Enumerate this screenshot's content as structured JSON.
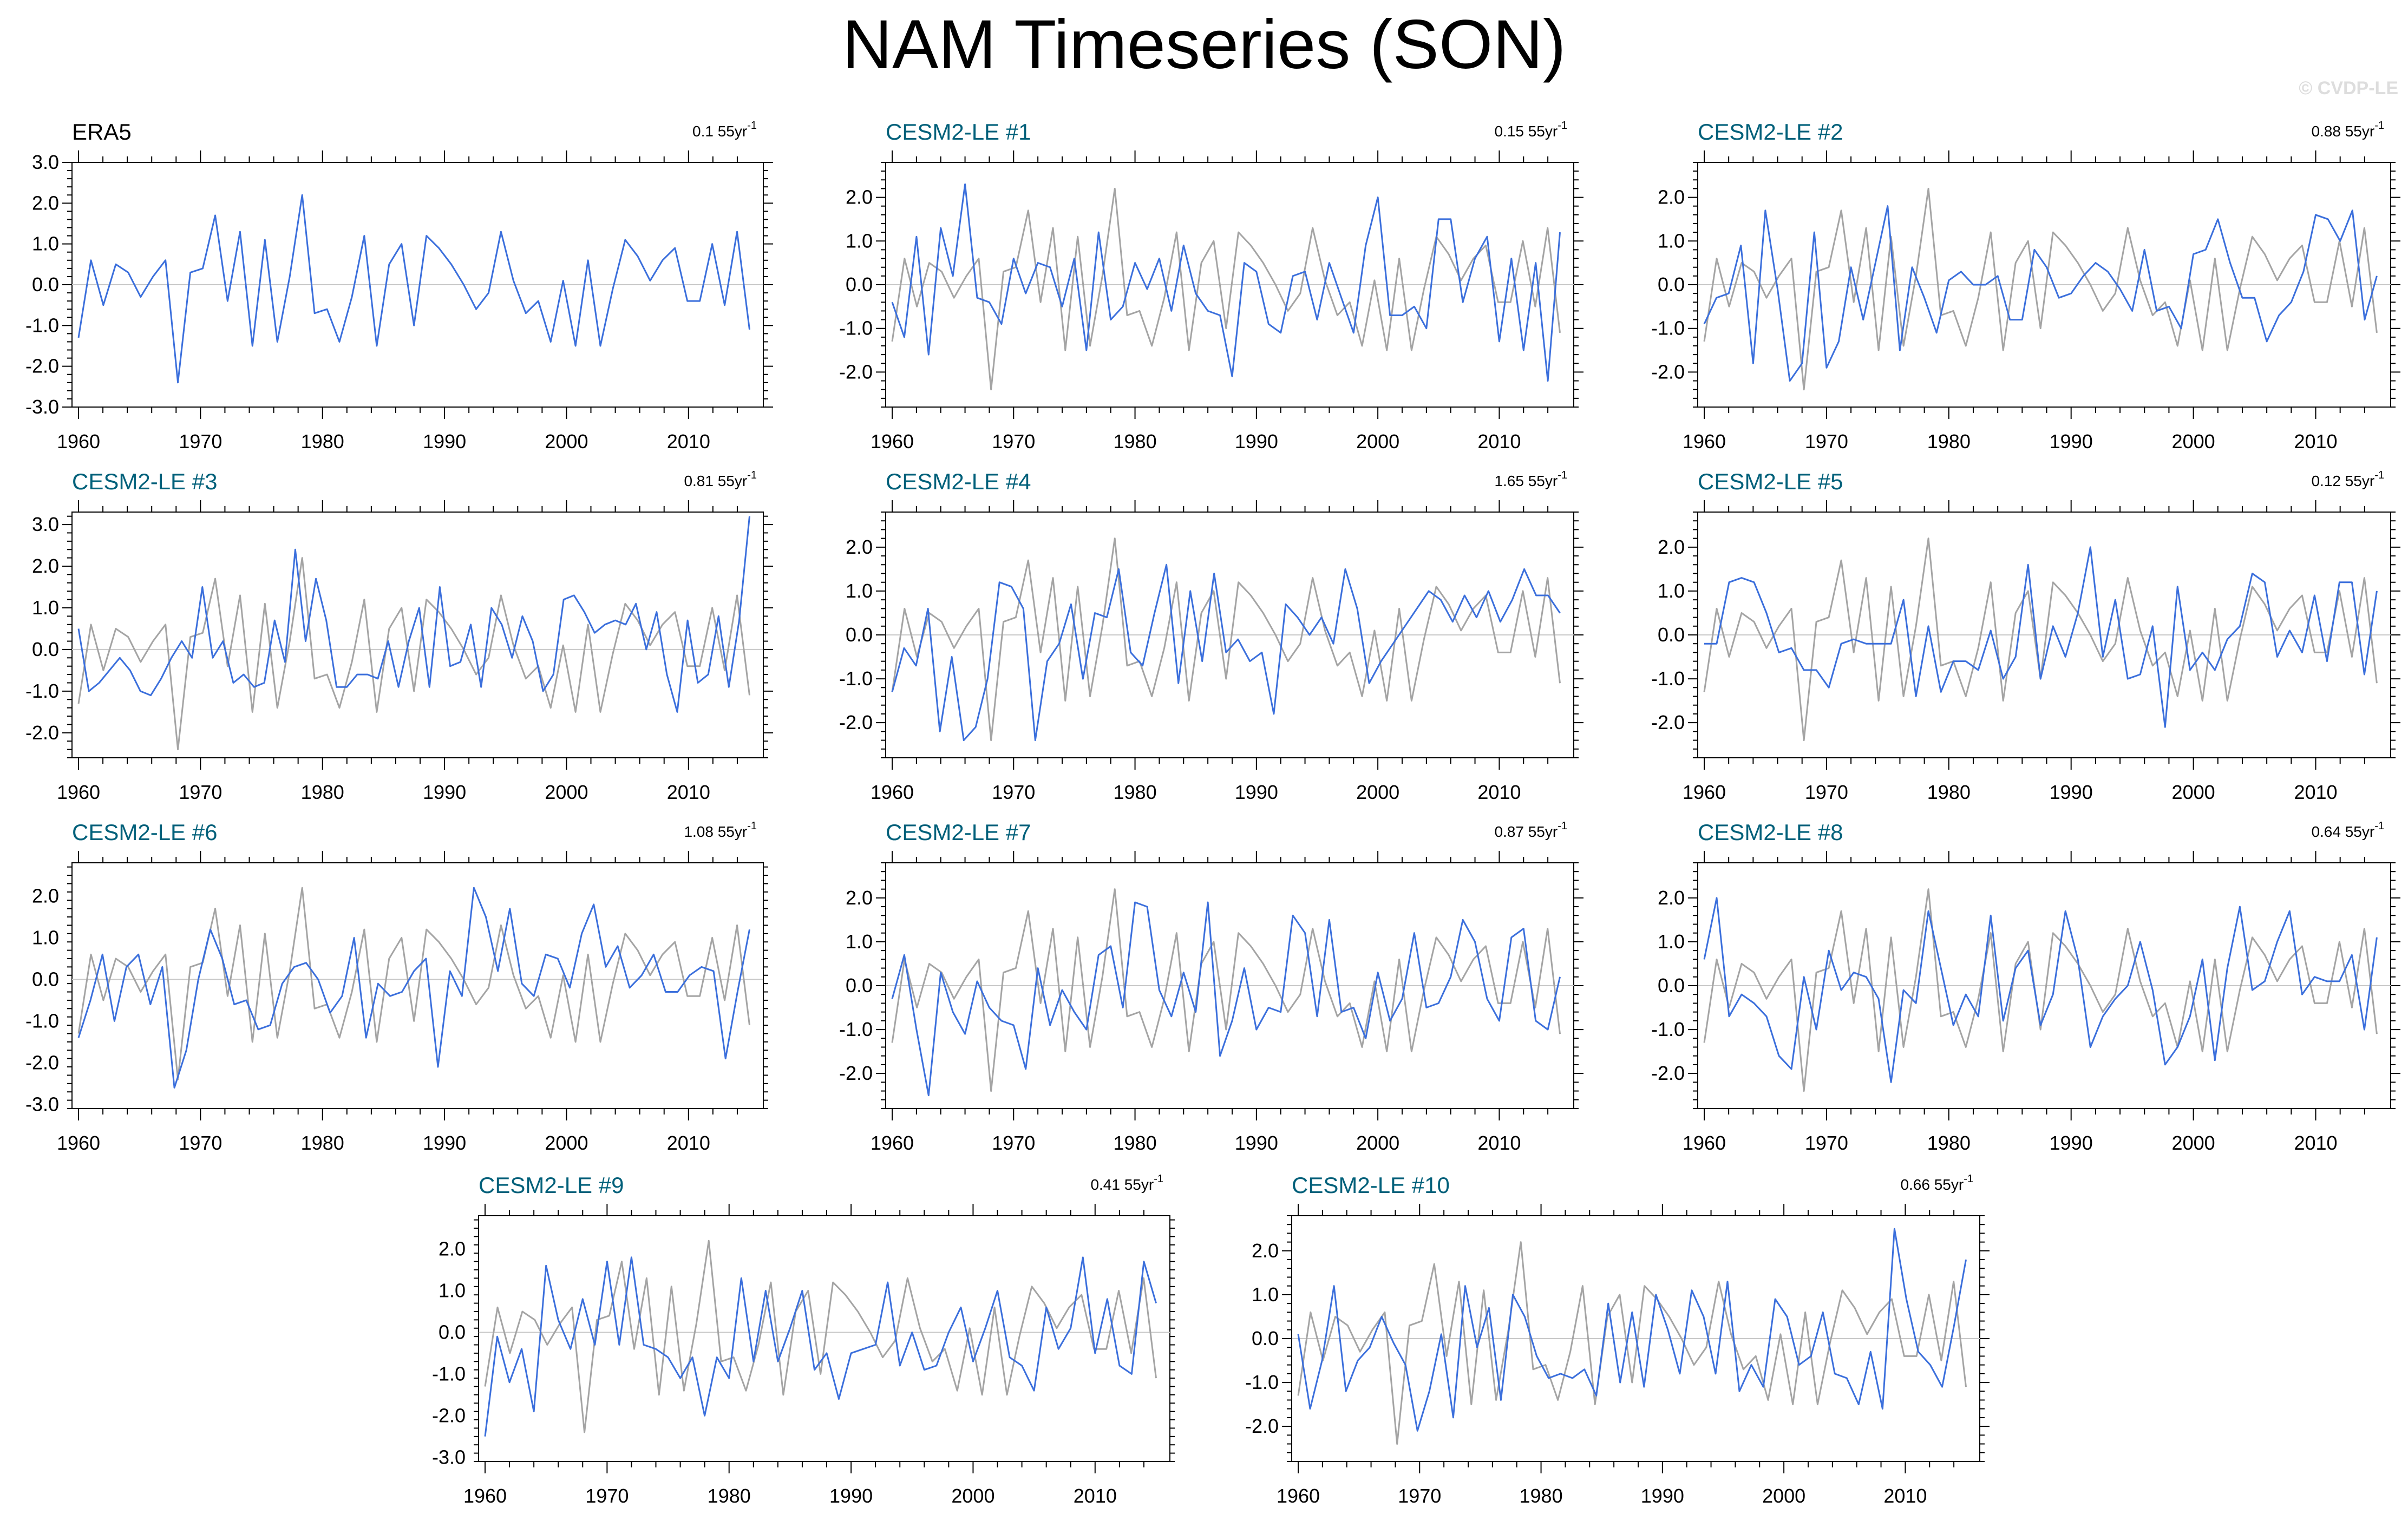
{
  "title": "NAM Timeseries (SON)",
  "copyright": "© CVDP-LE",
  "colors": {
    "ensemble": "#3b6fdc",
    "observed": "#a4a4a4",
    "obs_title": "#000000",
    "member_title": "#00607a",
    "zero_line": "#c8c8c8"
  },
  "chart_data": [
    {
      "type": "line",
      "title": "ERA5",
      "trend_value": "0.1 55yr",
      "trend_exp": "-1",
      "x_ticks": [
        "1960",
        "1970",
        "1980",
        "1990",
        "2000",
        "2010"
      ],
      "y_ticks": [
        "3.0",
        "2.0",
        "1.0",
        "0.0",
        "-1.0",
        "-2.0",
        "-3.0"
      ],
      "ylim": [
        -3.0,
        3.0
      ],
      "series": []
    },
    {
      "type": "line",
      "title": "CESM2-LE #1",
      "trend_value": "0.15 55yr",
      "trend_exp": "-1",
      "x_ticks": [
        "1960",
        "1970",
        "1980",
        "1990",
        "2000",
        "2010"
      ],
      "y_ticks": [
        "2.0",
        "1.0",
        "0.0",
        "-1.0",
        "-2.0"
      ],
      "ylim": [
        -2.8,
        2.8
      ],
      "series": [
        {
          "values": [
            -0.4,
            -1.2,
            1.1,
            -1.6,
            1.3,
            0.2,
            2.3,
            -0.3,
            -0.4,
            -0.9,
            0.6,
            -0.2,
            0.5,
            0.4,
            -0.5,
            0.6,
            -1.5,
            1.2,
            -0.8,
            -0.5,
            0.5,
            -0.1,
            0.6,
            -0.6,
            0.9,
            -0.2,
            -0.6,
            -0.7,
            -2.1,
            0.5,
            0.3,
            -0.9,
            -1.1,
            0.2,
            0.3,
            -0.8,
            0.5,
            -0.3,
            -1.1,
            0.9,
            2.0,
            -0.7,
            -0.7,
            -0.5,
            -1.0,
            1.5,
            1.5,
            -0.4,
            0.6,
            1.1,
            -1.3,
            0.6,
            -1.5,
            0.5,
            -2.2,
            1.2
          ]
        }
      ]
    },
    {
      "type": "line",
      "title": "CESM2-LE #2",
      "trend_value": "0.88 55yr",
      "trend_exp": "-1",
      "x_ticks": [
        "1960",
        "1970",
        "1980",
        "1990",
        "2000",
        "2010"
      ],
      "y_ticks": [
        "2.0",
        "1.0",
        "0.0",
        "-1.0",
        "-2.0"
      ],
      "ylim": [
        -2.8,
        2.8
      ],
      "series": [
        {
          "values": [
            -0.9,
            -0.3,
            -0.2,
            0.9,
            -1.8,
            1.7,
            -0.1,
            -2.2,
            -1.8,
            1.2,
            -1.9,
            -1.3,
            0.4,
            -0.8,
            0.5,
            1.8,
            -1.5,
            0.4,
            -0.3,
            -1.1,
            0.1,
            0.3,
            0.0,
            0.0,
            0.2,
            -0.8,
            -0.8,
            0.8,
            0.4,
            -0.3,
            -0.2,
            0.2,
            0.5,
            0.3,
            -0.1,
            -0.6,
            0.8,
            -0.6,
            -0.5,
            -1.0,
            0.7,
            0.8,
            1.5,
            0.5,
            -0.3,
            -0.3,
            -1.3,
            -0.7,
            -0.4,
            0.3,
            1.6,
            1.5,
            1.0,
            1.7,
            -0.8,
            0.2
          ]
        }
      ]
    },
    {
      "type": "line",
      "title": "CESM2-LE #3",
      "trend_value": "0.81 55yr",
      "trend_exp": "-1",
      "x_ticks": [
        "1960",
        "1970",
        "1980",
        "1990",
        "2000",
        "2010"
      ],
      "y_ticks": [
        "3.0",
        "2.0",
        "1.0",
        "0.0",
        "-1.0",
        "-2.0"
      ],
      "ylim": [
        -2.6,
        3.3
      ],
      "series": [
        {
          "values": [
            0.5,
            -1.0,
            -0.8,
            -0.5,
            -0.2,
            -0.5,
            -1.0,
            -1.1,
            -0.7,
            -0.2,
            0.2,
            -0.2,
            1.5,
            -0.2,
            0.2,
            -0.8,
            -0.6,
            -0.9,
            -0.8,
            0.7,
            -0.3,
            2.4,
            0.2,
            1.7,
            0.7,
            -0.9,
            -0.9,
            -0.6,
            -0.6,
            -0.7,
            0.2,
            -0.9,
            0.2,
            1.0,
            -0.9,
            1.5,
            -0.4,
            -0.3,
            0.6,
            -0.9,
            1.0,
            0.6,
            -0.2,
            0.8,
            0.2,
            -1.0,
            -0.6,
            1.2,
            1.3,
            0.9,
            0.4,
            0.6,
            0.7,
            0.6,
            1.1,
            0.0,
            0.9,
            -0.6,
            -1.5,
            0.7,
            -0.8,
            -0.6,
            0.8,
            -0.9,
            0.7,
            3.2
          ]
        }
      ]
    },
    {
      "type": "line",
      "title": "CESM2-LE #4",
      "trend_value": "1.65 55yr",
      "trend_exp": "-1",
      "x_ticks": [
        "1960",
        "1970",
        "1980",
        "1990",
        "2000",
        "2010"
      ],
      "y_ticks": [
        "2.0",
        "1.0",
        "0.0",
        "-1.0",
        "-2.0"
      ],
      "ylim": [
        -2.8,
        2.8
      ],
      "series": [
        {
          "values": [
            -1.3,
            -0.3,
            -0.7,
            0.6,
            -2.2,
            -0.5,
            -2.4,
            -2.1,
            -1.0,
            1.2,
            1.1,
            0.6,
            -2.4,
            -0.6,
            -0.2,
            0.7,
            -1.0,
            0.5,
            0.4,
            1.5,
            -0.4,
            -0.7,
            0.5,
            1.6,
            -1.1,
            1.0,
            -0.6,
            1.4,
            -0.4,
            -0.1,
            -0.6,
            -0.4,
            -1.8,
            0.7,
            0.4,
            0.0,
            0.4,
            -0.2,
            1.5,
            0.6,
            -1.1,
            -0.6,
            -0.2,
            0.2,
            0.6,
            1.0,
            0.8,
            0.3,
            0.9,
            0.4,
            1.0,
            0.3,
            0.8,
            1.5,
            0.9,
            0.9,
            0.5
          ]
        }
      ]
    },
    {
      "type": "line",
      "title": "CESM2-LE #5",
      "trend_value": "0.12 55yr",
      "trend_exp": "-1",
      "x_ticks": [
        "1960",
        "1970",
        "1980",
        "1990",
        "2000",
        "2010"
      ],
      "y_ticks": [
        "2.0",
        "1.0",
        "0.0",
        "-1.0",
        "-2.0"
      ],
      "ylim": [
        -2.8,
        2.8
      ],
      "series": [
        {
          "values": [
            -0.2,
            -0.2,
            1.2,
            1.3,
            1.2,
            0.5,
            -0.4,
            -0.3,
            -0.8,
            -0.8,
            -1.2,
            -0.2,
            -0.1,
            -0.2,
            -0.2,
            -0.2,
            0.8,
            -1.4,
            0.2,
            -1.3,
            -0.6,
            -0.6,
            -0.8,
            0.1,
            -1.0,
            -0.5,
            1.6,
            -1.0,
            0.2,
            -0.5,
            0.5,
            2.0,
            -0.5,
            0.8,
            -1.0,
            -0.9,
            0.2,
            -2.1,
            1.1,
            -0.8,
            -0.4,
            -0.8,
            -0.1,
            0.2,
            1.4,
            1.2,
            -0.5,
            0.1,
            -0.4,
            0.9,
            -0.6,
            1.2,
            1.2,
            -0.9,
            1.0
          ]
        }
      ]
    },
    {
      "type": "line",
      "title": "CESM2-LE #6",
      "trend_value": "1.08 55yr",
      "trend_exp": "-1",
      "x_ticks": [
        "1960",
        "1970",
        "1980",
        "1990",
        "2000",
        "2010"
      ],
      "y_ticks": [
        "2.0",
        "1.0",
        "0.0",
        "-1.0",
        "-2.0",
        "-3.0"
      ],
      "ylim": [
        -3.1,
        2.8
      ],
      "series": [
        {
          "values": [
            -1.4,
            -0.5,
            0.6,
            -1.0,
            0.3,
            0.6,
            -0.6,
            0.3,
            -2.6,
            -1.7,
            0.0,
            1.2,
            0.5,
            -0.6,
            -0.5,
            -1.2,
            -1.1,
            -0.1,
            0.3,
            0.4,
            0.0,
            -0.8,
            -0.4,
            1.0,
            -1.4,
            -0.1,
            -0.4,
            -0.3,
            0.2,
            0.5,
            -2.1,
            0.2,
            -0.4,
            2.2,
            1.5,
            0.2,
            1.7,
            -0.1,
            -0.4,
            0.6,
            0.5,
            -0.2,
            1.1,
            1.8,
            0.3,
            0.8,
            -0.2,
            0.1,
            0.6,
            -0.3,
            -0.3,
            0.1,
            0.3,
            0.2,
            -1.9,
            -0.3,
            1.2
          ]
        }
      ]
    },
    {
      "type": "line",
      "title": "CESM2-LE #7",
      "trend_value": "0.87 55yr",
      "trend_exp": "-1",
      "x_ticks": [
        "1960",
        "1970",
        "1980",
        "1990",
        "2000",
        "2010"
      ],
      "y_ticks": [
        "2.0",
        "1.0",
        "0.0",
        "-1.0",
        "-2.0"
      ],
      "ylim": [
        -2.8,
        2.8
      ],
      "series": [
        {
          "values": [
            -0.3,
            0.7,
            -1.0,
            -2.5,
            0.3,
            -0.6,
            -1.1,
            0.1,
            -0.5,
            -0.8,
            -0.9,
            -1.9,
            0.4,
            -0.9,
            -0.1,
            -0.6,
            -1.0,
            0.7,
            0.9,
            -0.5,
            1.9,
            1.8,
            -0.1,
            -0.7,
            0.3,
            -0.6,
            1.9,
            -1.6,
            -0.8,
            0.4,
            -1.0,
            -0.5,
            -0.6,
            1.6,
            1.2,
            -0.7,
            1.5,
            -0.6,
            -0.5,
            -1.2,
            0.3,
            -0.8,
            -0.3,
            1.2,
            -0.5,
            -0.4,
            0.2,
            1.5,
            1.0,
            -0.3,
            -0.8,
            1.1,
            1.3,
            -0.8,
            -1.0,
            0.2
          ]
        }
      ]
    },
    {
      "type": "line",
      "title": "CESM2-LE #8",
      "trend_value": "0.64 55yr",
      "trend_exp": "-1",
      "x_ticks": [
        "1960",
        "1970",
        "1980",
        "1990",
        "2000",
        "2010"
      ],
      "y_ticks": [
        "2.0",
        "1.0",
        "0.0",
        "-1.0",
        "-2.0"
      ],
      "ylim": [
        -2.8,
        2.8
      ],
      "series": [
        {
          "values": [
            0.6,
            2.0,
            -0.7,
            -0.2,
            -0.4,
            -0.7,
            -1.6,
            -1.9,
            0.2,
            -1.0,
            0.8,
            -0.1,
            0.3,
            0.2,
            -0.3,
            -2.2,
            -0.1,
            -0.4,
            1.7,
            0.4,
            -0.9,
            -0.2,
            -0.7,
            1.6,
            -0.8,
            0.4,
            0.8,
            -0.9,
            -0.2,
            1.7,
            0.6,
            -1.4,
            -0.7,
            -0.3,
            0.0,
            1.0,
            -0.1,
            -1.8,
            -1.4,
            -0.7,
            0.6,
            -1.7,
            0.4,
            1.8,
            -0.1,
            0.1,
            1.0,
            1.7,
            -0.2,
            0.2,
            0.1,
            0.1,
            0.7,
            -1.0,
            1.1
          ]
        }
      ]
    },
    {
      "type": "line",
      "title": "CESM2-LE #9",
      "trend_value": "0.41 55yr",
      "trend_exp": "-1",
      "x_ticks": [
        "1960",
        "1970",
        "1980",
        "1990",
        "2000",
        "2010"
      ],
      "y_ticks": [
        "2.0",
        "1.0",
        "0.0",
        "-1.0",
        "-2.0",
        "-3.0"
      ],
      "ylim": [
        -3.1,
        2.8
      ],
      "series": [
        {
          "values": [
            -2.5,
            -0.1,
            -1.2,
            -0.4,
            -1.9,
            1.6,
            0.3,
            -0.4,
            0.8,
            -0.3,
            1.7,
            -0.3,
            1.8,
            -0.3,
            -0.4,
            -0.6,
            -1.1,
            -0.6,
            -2.0,
            -0.6,
            -1.1,
            1.3,
            -0.7,
            1.0,
            -0.7,
            0.1,
            1.0,
            -0.9,
            -0.5,
            -1.6,
            -0.5,
            -0.4,
            -0.3,
            1.2,
            -0.8,
            0.0,
            -0.9,
            -0.8,
            0.0,
            0.6,
            -0.7,
            0.1,
            1.0,
            -0.6,
            -0.8,
            -1.4,
            0.6,
            -0.4,
            0.1,
            1.8,
            -0.5,
            0.8,
            -0.8,
            -1.0,
            1.7,
            0.7
          ]
        }
      ]
    },
    {
      "type": "line",
      "title": "CESM2-LE #10",
      "trend_value": "0.66 55yr",
      "trend_exp": "-1",
      "x_ticks": [
        "1960",
        "1970",
        "1980",
        "1990",
        "2000",
        "2010"
      ],
      "y_ticks": [
        "2.0",
        "1.0",
        "0.0",
        "-1.0",
        "-2.0"
      ],
      "ylim": [
        -2.8,
        2.8
      ],
      "series": [
        {
          "values": [
            0.1,
            -1.6,
            -0.5,
            1.2,
            -1.2,
            -0.5,
            -0.2,
            0.5,
            -0.1,
            -0.6,
            -2.1,
            -1.2,
            0.1,
            -1.8,
            1.2,
            -0.2,
            0.7,
            -1.4,
            1.0,
            0.5,
            -0.4,
            -0.9,
            -0.8,
            -0.9,
            -0.7,
            -1.3,
            0.8,
            -1.0,
            0.6,
            -1.1,
            1.0,
            0.2,
            -0.8,
            1.1,
            0.5,
            -0.8,
            1.3,
            -1.2,
            -0.6,
            -1.1,
            0.9,
            0.5,
            -0.6,
            -0.4,
            0.6,
            -0.8,
            -0.9,
            -1.5,
            -0.3,
            -1.6,
            2.5,
            0.9,
            -0.3,
            -0.6,
            -1.1,
            0.3,
            1.8
          ]
        }
      ]
    }
  ],
  "observed_values": [
    -1.3,
    0.6,
    -0.5,
    0.5,
    0.3,
    -0.3,
    0.2,
    0.6,
    -2.4,
    0.3,
    0.4,
    1.7,
    -0.4,
    1.3,
    -1.5,
    1.1,
    -1.4,
    0.2,
    2.2,
    -0.7,
    -0.6,
    -1.4,
    -0.3,
    1.2,
    -1.5,
    0.5,
    1.0,
    -1.0,
    1.2,
    0.9,
    0.5,
    0.0,
    -0.6,
    -0.2,
    1.3,
    0.1,
    -0.7,
    -0.4,
    -1.4,
    0.1,
    -1.5,
    0.6,
    -1.5,
    -0.1,
    1.1,
    0.7,
    0.1,
    0.6,
    0.9,
    -0.4,
    -0.4,
    1.0,
    -0.5,
    1.3,
    -1.1
  ]
}
